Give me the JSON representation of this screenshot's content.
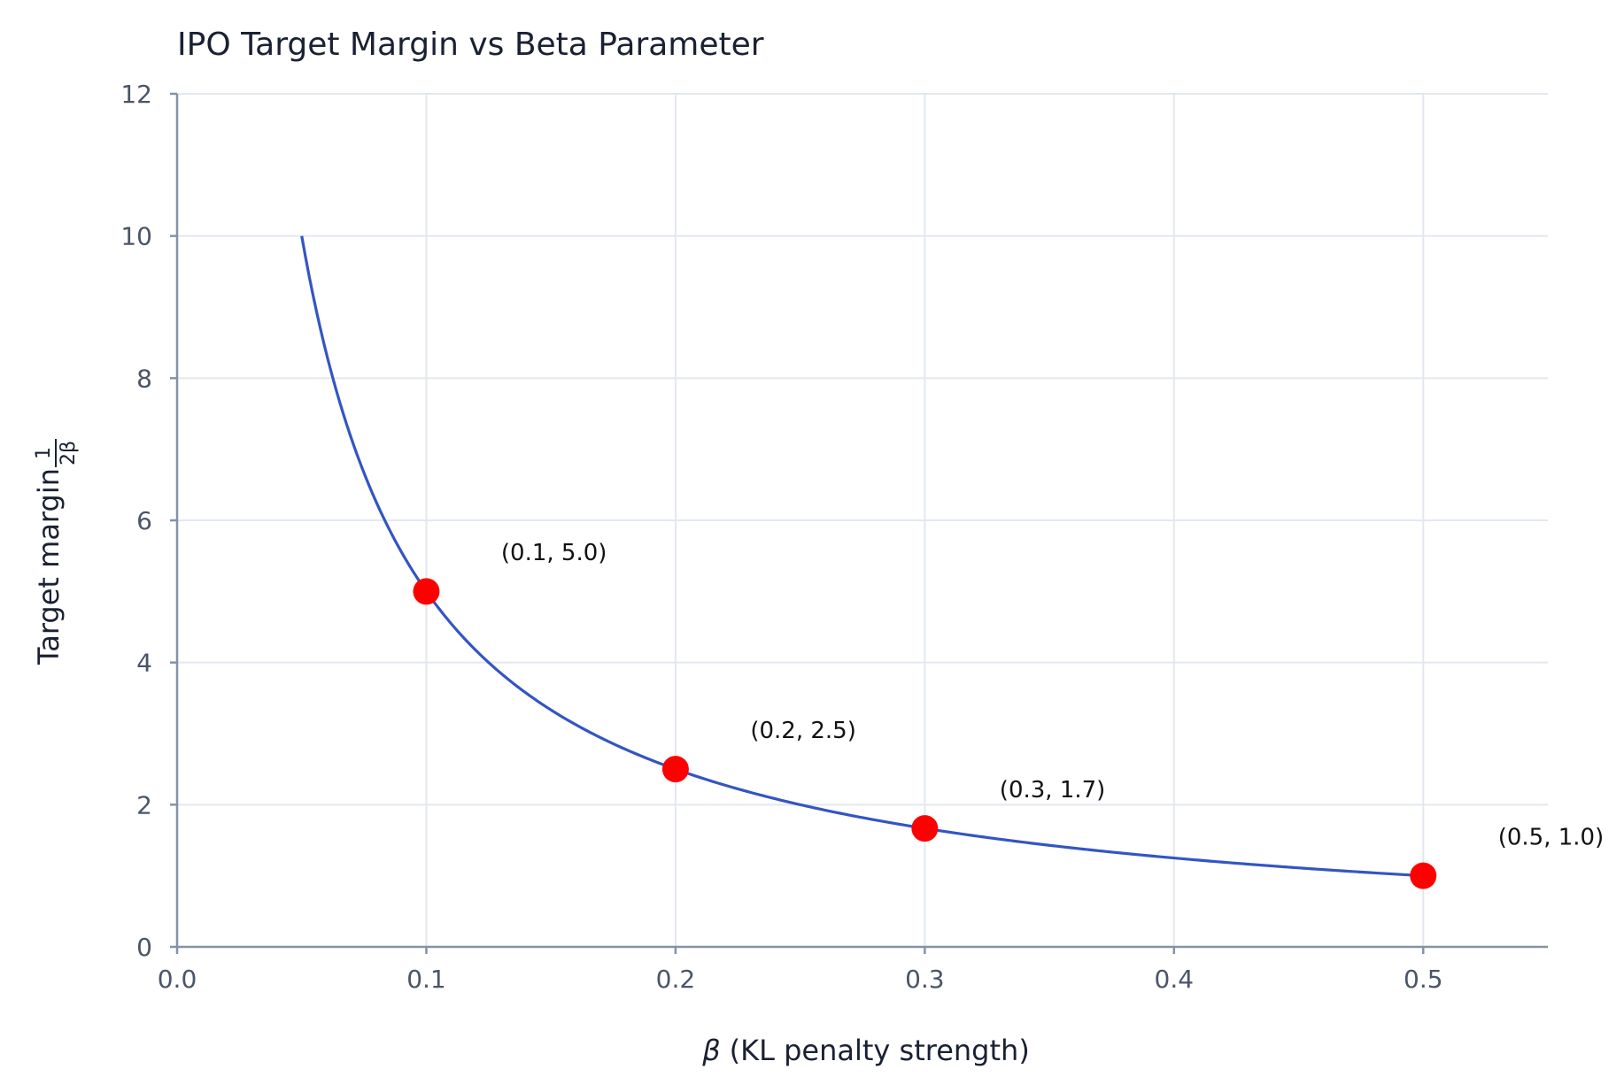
{
  "chart_data": {
    "type": "line",
    "title": "IPO Target Margin vs Beta Parameter",
    "xlabel_symbol": "β",
    "xlabel": "(KL penalty strength)",
    "ylabel": "Target margin",
    "ylabel_frac_num": "1",
    "ylabel_frac_den": "2β",
    "xlim": [
      0.0,
      0.55
    ],
    "ylim": [
      0,
      12
    ],
    "xticks": [
      "0.0",
      "0.1",
      "0.2",
      "0.3",
      "0.4",
      "0.5"
    ],
    "yticks": [
      "0",
      "2",
      "4",
      "6",
      "8",
      "10",
      "12"
    ],
    "grid": true,
    "curve": {
      "function": "1/(2*beta)",
      "x_start": 0.05,
      "x_end": 0.5,
      "color": "#3355c4"
    },
    "points": [
      {
        "x": 0.1,
        "y": 5.0,
        "label": "(0.1, 5.0)"
      },
      {
        "x": 0.2,
        "y": 2.5,
        "label": "(0.2, 2.5)"
      },
      {
        "x": 0.3,
        "y": 1.6667,
        "label": "(0.3, 1.7)"
      },
      {
        "x": 0.5,
        "y": 1.0,
        "label": "(0.5, 1.0)"
      }
    ],
    "point_color": "#ff0000"
  }
}
